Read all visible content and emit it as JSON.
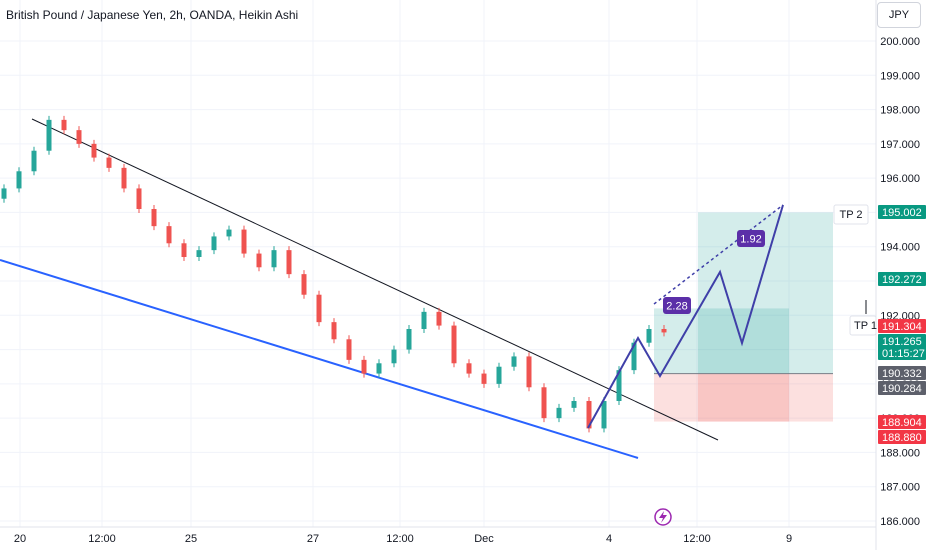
{
  "header": {
    "title": "British Pound / Japanese Yen, 2h, OANDA, Heikin Ashi",
    "currency": "JPY"
  },
  "chart_data": {
    "type": "candlestick",
    "y_axis": {
      "ticks": [
        "200.000",
        "199.000",
        "198.000",
        "197.000",
        "196.000",
        "195.000",
        "194.000",
        "193.000",
        "192.000",
        "191.000",
        "190.000",
        "189.000",
        "188.000",
        "187.000",
        "186.000"
      ],
      "range": [
        186.0,
        200.4
      ]
    },
    "x_axis": {
      "ticks": [
        "20",
        "12:00",
        "25",
        "27",
        "12:00",
        "Dec",
        "4",
        "12:00",
        "9"
      ]
    },
    "price_tags": [
      {
        "label": "195.002",
        "value": 195.002,
        "color": "#089981"
      },
      {
        "label": "192.272",
        "value": 192.272,
        "color": "#089981"
      },
      {
        "label": "191.304",
        "value": 191.304,
        "color": "#f23645"
      },
      {
        "label": "191.265",
        "value": 191.265,
        "color": "#089981"
      },
      {
        "label": "01:15:27",
        "value": 190.9,
        "color": "#089981"
      },
      {
        "label": "190.332",
        "value": 190.332,
        "color": "#5d606b"
      },
      {
        "label": "190.284",
        "value": 190.284,
        "color": "#5d606b"
      },
      {
        "label": "188.904",
        "value": 188.904,
        "color": "#f23645"
      },
      {
        "label": "188.880",
        "value": 188.88,
        "color": "#f23645"
      }
    ],
    "annotations": [
      {
        "label": "TP 2",
        "value": 195.0
      },
      {
        "label": "TP 1",
        "value": 191.8
      },
      {
        "label": "2.28"
      },
      {
        "label": "1.92"
      }
    ],
    "colors": {
      "up": "#26a69a",
      "down": "#ef5350",
      "trendline": "#131722",
      "support": "#2962ff",
      "projection": "#3f3fa8"
    },
    "series": [
      {
        "name": "",
        "values": [
          195.7,
          196.2,
          196.8,
          197.7,
          197.4,
          197.0,
          196.6,
          196.3,
          195.7,
          195.1,
          194.6,
          194.1,
          193.7,
          193.9,
          194.3,
          194.5,
          193.8,
          193.4,
          193.9,
          193.2,
          192.6,
          191.8,
          191.3,
          190.7,
          190.3,
          190.6,
          191.0,
          191.6,
          192.1,
          191.7,
          190.6,
          190.3,
          190.0,
          190.5,
          190.8,
          189.9,
          189.0,
          189.3,
          189.5,
          188.7,
          189.5,
          190.4,
          191.2,
          191.6,
          191.5
        ]
      }
    ]
  }
}
